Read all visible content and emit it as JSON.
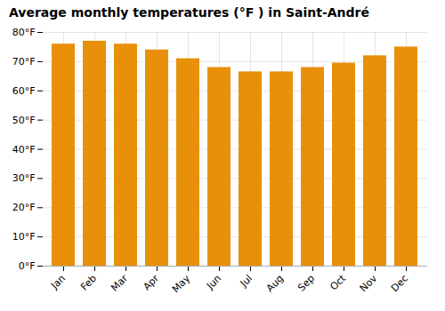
{
  "chart_data": {
    "type": "bar",
    "title": "Average monthly temperatures (°F ) in Saint-André",
    "categories": [
      "Jan",
      "Feb",
      "Mar",
      "Apr",
      "May",
      "Jun",
      "Jul",
      "Aug",
      "Sep",
      "Oct",
      "Nov",
      "Dec"
    ],
    "values": [
      76,
      77,
      76,
      74,
      71,
      68,
      66.5,
      66.5,
      68,
      69.5,
      72,
      75
    ],
    "color": "#E8900A",
    "ylim": [
      0,
      80
    ],
    "yticks": [
      {
        "value": 0,
        "label": "0°F"
      },
      {
        "value": 10,
        "label": "10°F"
      },
      {
        "value": 20,
        "label": "20°F"
      },
      {
        "value": 30,
        "label": "30°F"
      },
      {
        "value": 40,
        "label": "40°F"
      },
      {
        "value": 50,
        "label": "50°F"
      },
      {
        "value": 60,
        "label": "60°F"
      },
      {
        "value": 70,
        "label": "70°F"
      },
      {
        "value": 80,
        "label": "80°F"
      }
    ],
    "grid": true
  }
}
